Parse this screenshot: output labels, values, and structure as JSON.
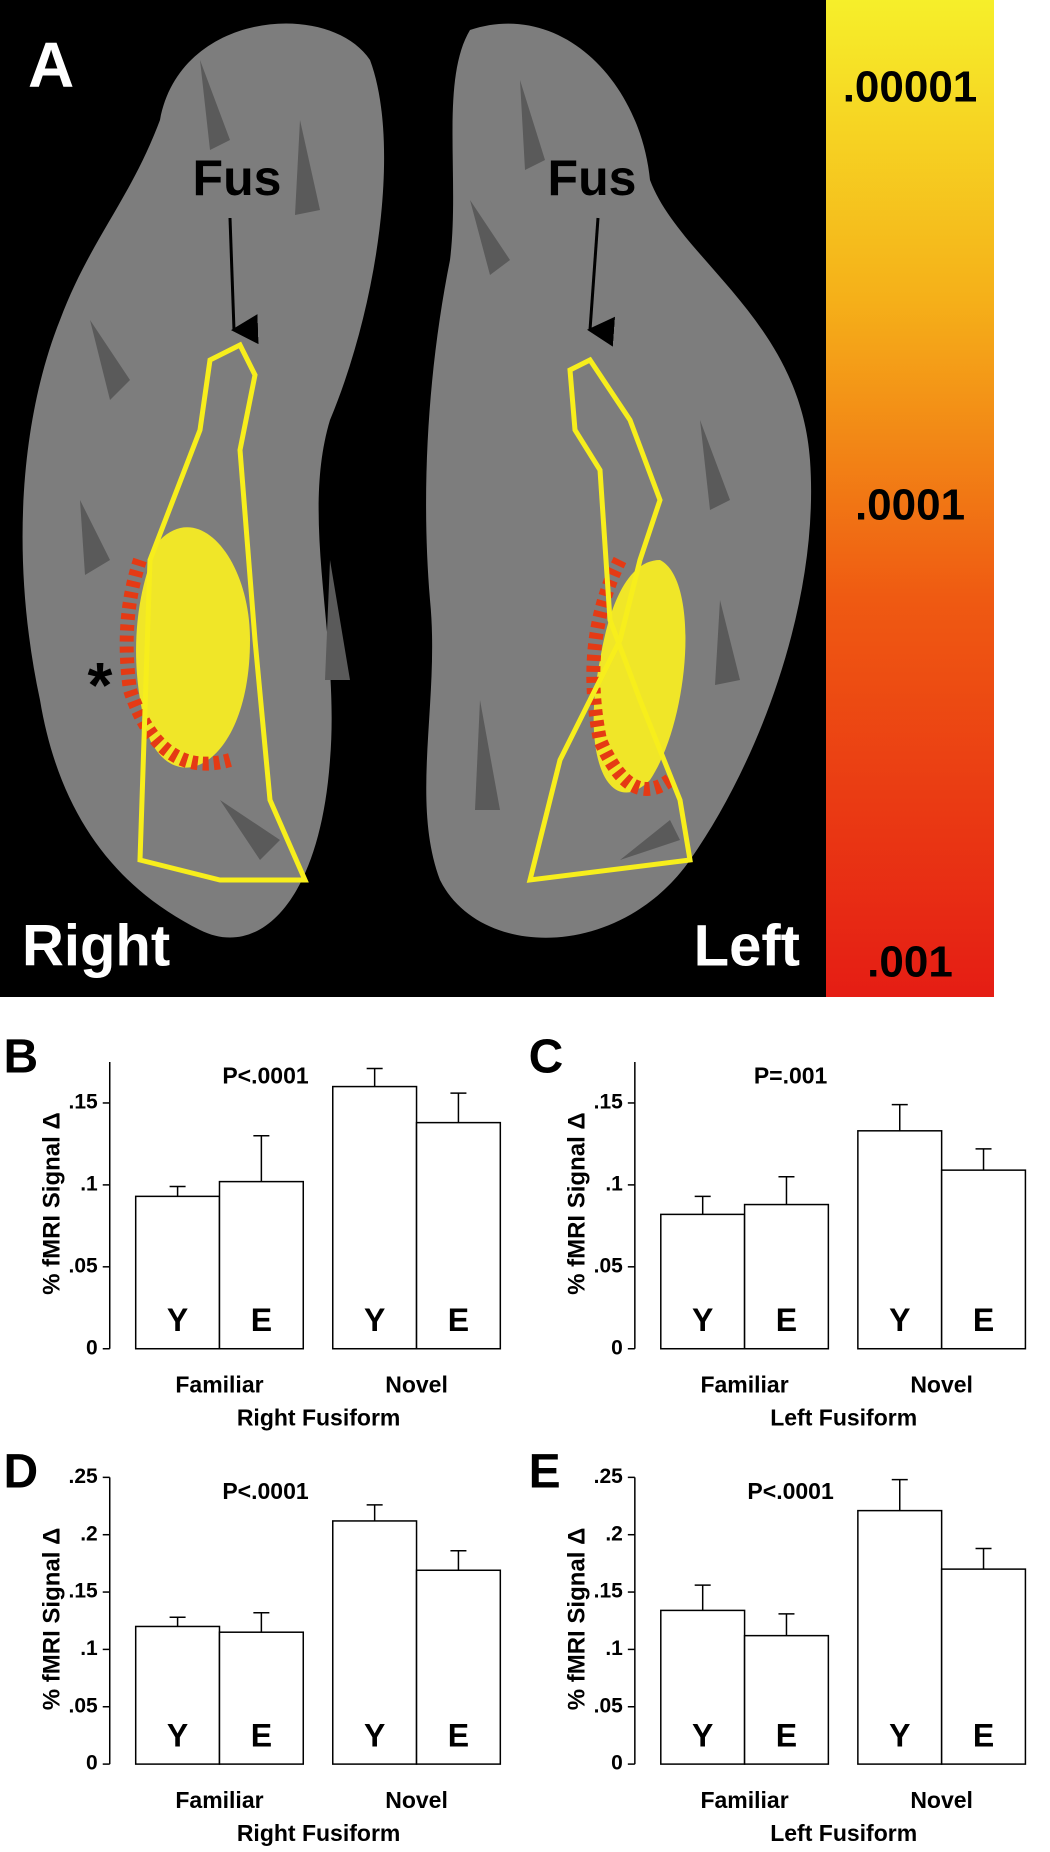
{
  "panel_a": {
    "label": "A",
    "annotations": [
      "Fus",
      "Fus",
      "*"
    ],
    "hemispheres": [
      "Right",
      "Left"
    ],
    "colorbar_labels": [
      ".00001",
      ".0001",
      ".001"
    ]
  },
  "chart_data": [
    {
      "type": "bar",
      "panel": "B",
      "ylabel": "% fMRI Signal Δ",
      "annotation": "P<.0001",
      "xlabel": "Right Fusiform",
      "groups": [
        "Familiar",
        "Novel"
      ],
      "categories": [
        "Y",
        "E",
        "Y",
        "E"
      ],
      "values": [
        0.093,
        0.102,
        0.16,
        0.138
      ],
      "errors": [
        0.006,
        0.028,
        0.011,
        0.018
      ],
      "color": "#ffffff",
      "ylim": [
        0,
        0.175
      ],
      "yticks": [
        0,
        {
          "value": 0.05,
          "label": ".05"
        },
        {
          "value": 0.1,
          "label": ".1"
        },
        {
          "value": 0.15,
          "label": ".15"
        }
      ]
    },
    {
      "type": "bar",
      "panel": "C",
      "ylabel": "% fMRI Signal Δ",
      "annotation": "P=.001",
      "xlabel": "Left Fusiform",
      "groups": [
        "Familiar",
        "Novel"
      ],
      "categories": [
        "Y",
        "E",
        "Y",
        "E"
      ],
      "values": [
        0.082,
        0.088,
        0.133,
        0.109
      ],
      "errors": [
        0.011,
        0.017,
        0.016,
        0.013
      ],
      "color": "#ffffff",
      "ylim": [
        0,
        0.175
      ],
      "yticks": [
        0,
        {
          "value": 0.05,
          "label": ".05"
        },
        {
          "value": 0.1,
          "label": ".1"
        },
        {
          "value": 0.15,
          "label": ".15"
        }
      ]
    },
    {
      "type": "bar",
      "panel": "D",
      "ylabel": "% fMRI Signal Δ",
      "annotation": "P<.0001",
      "xlabel": "Right Fusiform",
      "groups": [
        "Familiar",
        "Novel"
      ],
      "categories": [
        "Y",
        "E",
        "Y",
        "E"
      ],
      "values": [
        0.12,
        0.115,
        0.212,
        0.169
      ],
      "errors": [
        0.008,
        0.017,
        0.014,
        0.017
      ],
      "color": "#ffffff",
      "ylim": [
        0,
        0.25
      ],
      "yticks": [
        0,
        {
          "value": 0.05,
          "label": ".05"
        },
        {
          "value": 0.1,
          "label": ".1"
        },
        {
          "value": 0.15,
          "label": ".15"
        },
        {
          "value": 0.2,
          "label": ".2"
        },
        {
          "value": 0.25,
          "label": ".25"
        }
      ]
    },
    {
      "type": "bar",
      "panel": "E",
      "ylabel": "% fMRI Signal Δ",
      "annotation": "P<.0001",
      "xlabel": "Left Fusiform",
      "groups": [
        "Familiar",
        "Novel"
      ],
      "categories": [
        "Y",
        "E",
        "Y",
        "E"
      ],
      "values": [
        0.134,
        0.112,
        0.221,
        0.17
      ],
      "errors": [
        0.022,
        0.019,
        0.027,
        0.018
      ],
      "color": "#ffffff",
      "ylim": [
        0,
        0.25
      ],
      "yticks": [
        0,
        {
          "value": 0.05,
          "label": ".05"
        },
        {
          "value": 0.1,
          "label": ".1"
        },
        {
          "value": 0.15,
          "label": ".15"
        },
        {
          "value": 0.2,
          "label": ".2"
        },
        {
          "value": 0.25,
          "label": ".25"
        }
      ]
    }
  ]
}
